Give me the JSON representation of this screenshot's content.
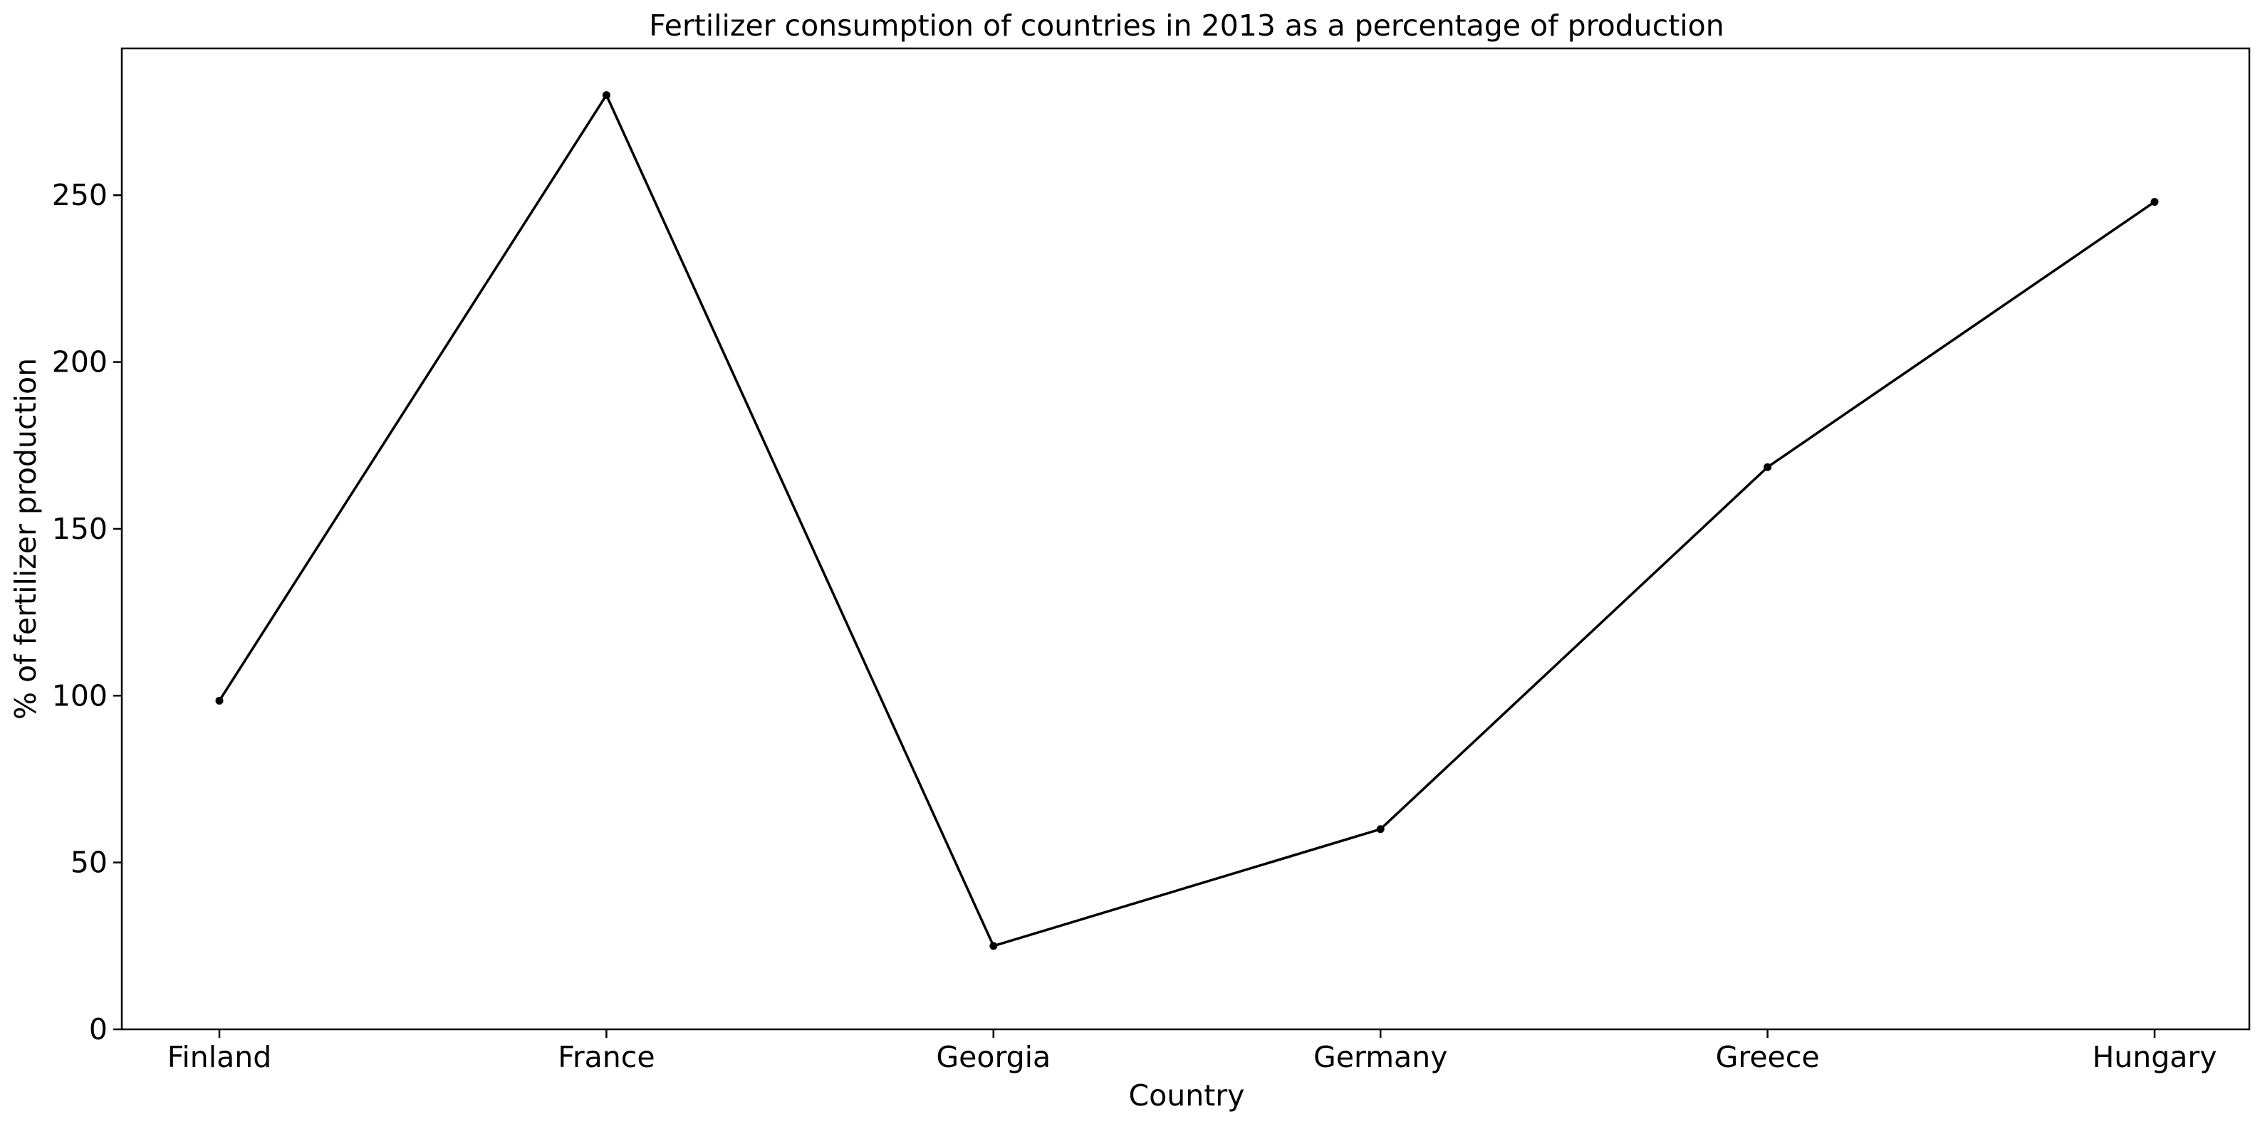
{
  "chart_data": {
    "type": "line",
    "title": "Fertilizer consumption of countries in 2013 as a percentage of production",
    "xlabel": "Country",
    "ylabel": "% of fertilizer production",
    "categories": [
      "Finland",
      "France",
      "Georgia",
      "Germany",
      "Greece",
      "Hungary"
    ],
    "series": [
      {
        "values": [
          98.5,
          280,
          25,
          60,
          168.5,
          248
        ]
      }
    ],
    "ylim": [
      0,
      294
    ],
    "yticks": [
      0,
      50,
      100,
      150,
      200,
      250
    ],
    "grid": false,
    "legend": "none",
    "colors": {
      "line": "#000000",
      "marker": "#000000",
      "axes": "#000000",
      "background": "#ffffff"
    }
  }
}
